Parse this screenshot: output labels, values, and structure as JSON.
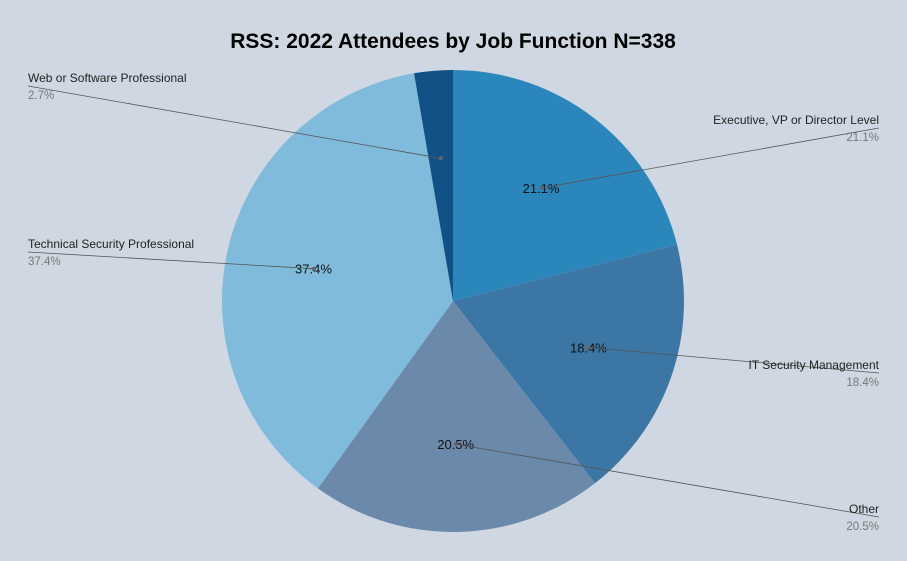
{
  "chart_data": {
    "type": "pie",
    "title": "RSS: 2022 Attendees by Job Function N=338",
    "start_angle_deg": 0,
    "direction": "clockwise",
    "slices": [
      {
        "name": "Executive, VP or Director Level",
        "value": 21.1,
        "label": "21.1%",
        "color": "#2a86bb",
        "legend_side": "right"
      },
      {
        "name": "IT Security Management",
        "value": 18.4,
        "label": "18.4%",
        "color": "#3c76a4",
        "legend_side": "right"
      },
      {
        "name": "Other",
        "value": 20.5,
        "label": "20.5%",
        "color": "#6b89ab",
        "legend_side": "right"
      },
      {
        "name": "Technical Security Professional",
        "value": 37.4,
        "label": "37.4%",
        "color": "#80bbdc",
        "legend_side": "left"
      },
      {
        "name": "Web or Software Professional",
        "value": 2.7,
        "label": "2.7%",
        "color": "#125185",
        "legend_side": "left"
      }
    ]
  }
}
